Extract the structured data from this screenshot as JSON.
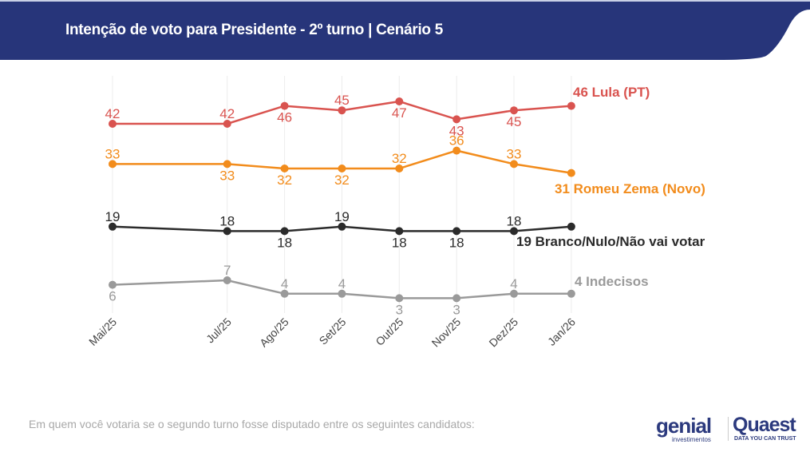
{
  "header": {
    "title": "Intenção de voto para Presidente - 2º turno | Cenário 5"
  },
  "footnote": "Em quem você votaria se o segundo turno fosse disputado entre os seguintes candidatos:",
  "logos": {
    "genial": "genial",
    "genial_sub": "investimentos",
    "quaest": "Quaest",
    "quaest_sub": "DATA YOU CAN TRUST"
  },
  "chart_data": {
    "type": "line",
    "title": "Intenção de voto para Presidente - 2º turno | Cenário 5",
    "xlabel": "",
    "ylabel": "",
    "categories": [
      "Mai/25",
      "Jul/25",
      "Ago/25",
      "Set/25",
      "Out/25",
      "Nov/25",
      "Dez/25",
      "Jan/26"
    ],
    "x": [
      "2025-05",
      "2025-07",
      "2025-08",
      "2025-09",
      "2025-10",
      "2025-11",
      "2025-12",
      "2026-01"
    ],
    "grid": "vertical",
    "legend": "end-of-line labels",
    "series": [
      {
        "name": "Lula (PT)",
        "end_label": "46 Lula (PT)",
        "color": "#d9534f",
        "values": [
          42,
          42,
          46,
          45,
          47,
          43,
          45,
          46
        ]
      },
      {
        "name": "Romeu Zema (Novo)",
        "end_label": "31 Romeu Zema (Novo)",
        "color": "#f28c1c",
        "values": [
          33,
          33,
          32,
          32,
          32,
          36,
          33,
          31
        ]
      },
      {
        "name": "Branco/Nulo/Não vai votar",
        "end_label": "19 Branco/Nulo/Não vai votar",
        "color": "#2b2b2b",
        "values": [
          19,
          18,
          18,
          19,
          18,
          18,
          18,
          19
        ]
      },
      {
        "name": "Indecisos",
        "end_label": "4 Indecisos",
        "color": "#9a9a9a",
        "values": [
          6,
          7,
          4,
          4,
          3,
          3,
          4,
          4
        ]
      }
    ]
  },
  "colors": {
    "header_bg": "#27357a"
  }
}
